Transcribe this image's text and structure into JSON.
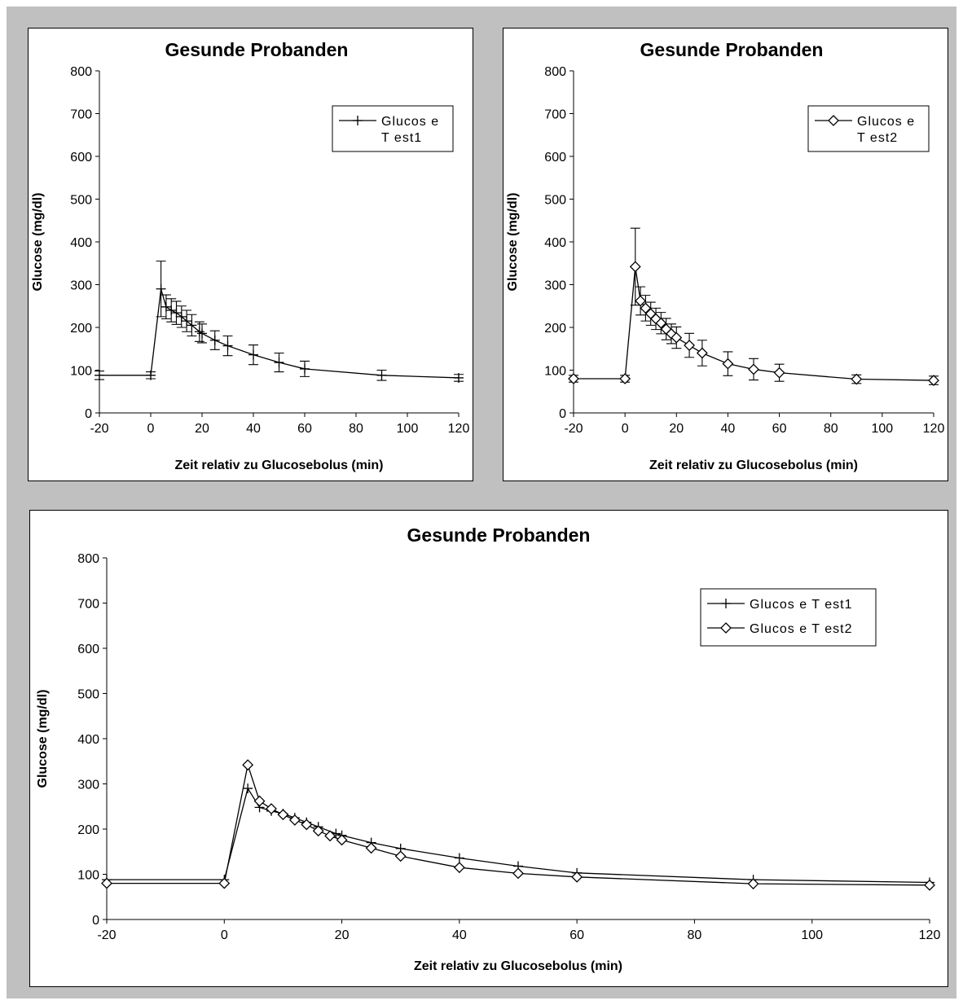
{
  "colors": {
    "background": "#c0c0c0",
    "panel": "#ffffff",
    "ink": "#000000"
  },
  "chart_data": [
    {
      "type": "line",
      "title": "Gesunde Probanden",
      "xlabel": "Zeit relativ zu Glucosebolus (min)",
      "ylabel": "Glucose (mg/dl)",
      "xlim": [
        -20,
        120
      ],
      "ylim": [
        0,
        800
      ],
      "xticks": [
        "-20",
        "0",
        "20",
        "40",
        "60",
        "80",
        "100",
        "120"
      ],
      "yticks": [
        "0",
        "100",
        "200",
        "300",
        "400",
        "500",
        "600",
        "700",
        "800"
      ],
      "legend_placement": "top-right",
      "grid": false,
      "series": [
        {
          "name": "Glucos e T est1",
          "legend_lines": [
            "Glucos e",
            "T est1"
          ],
          "marker": "plus",
          "x": [
            -20,
            0,
            4,
            6,
            8,
            10,
            12,
            14,
            16,
            19,
            20,
            25,
            30,
            40,
            50,
            60,
            90,
            120
          ],
          "y": [
            88,
            88,
            290,
            248,
            240,
            234,
            225,
            215,
            205,
            190,
            186,
            170,
            157,
            136,
            118,
            103,
            88,
            82
          ],
          "err": [
            10,
            8,
            65,
            28,
            27,
            27,
            25,
            25,
            25,
            23,
            22,
            22,
            23,
            23,
            22,
            18,
            12,
            8
          ]
        }
      ]
    },
    {
      "type": "line",
      "title": "Gesunde Probanden",
      "xlabel": "Zeit relativ zu Glucosebolus (min)",
      "ylabel": "Glucose (mg/dl)",
      "xlim": [
        -20,
        120
      ],
      "ylim": [
        0,
        800
      ],
      "xticks": [
        "-20",
        "0",
        "20",
        "40",
        "60",
        "80",
        "100",
        "120"
      ],
      "yticks": [
        "0",
        "100",
        "200",
        "300",
        "400",
        "500",
        "600",
        "700",
        "800"
      ],
      "legend_placement": "top-right",
      "grid": false,
      "series": [
        {
          "name": "Glucos e T est2",
          "legend_lines": [
            "Glucos e",
            "T est2"
          ],
          "marker": "diamond",
          "x": [
            -20,
            0,
            4,
            6,
            8,
            10,
            12,
            14,
            16,
            18,
            20,
            25,
            30,
            40,
            50,
            60,
            90,
            120
          ],
          "y": [
            80,
            80,
            342,
            262,
            245,
            232,
            220,
            210,
            196,
            185,
            176,
            158,
            140,
            115,
            102,
            94,
            79,
            76
          ],
          "err": [
            8,
            8,
            90,
            33,
            30,
            27,
            25,
            25,
            25,
            23,
            25,
            28,
            30,
            28,
            25,
            20,
            10,
            10
          ]
        }
      ]
    },
    {
      "type": "line",
      "title": "Gesunde Probanden",
      "xlabel": "Zeit relativ zu Glucosebolus (min)",
      "ylabel": "Glucose (mg/dl)",
      "xlim": [
        -20,
        120
      ],
      "ylim": [
        0,
        800
      ],
      "xticks": [
        "-20",
        "0",
        "20",
        "40",
        "60",
        "80",
        "100",
        "120"
      ],
      "yticks": [
        "0",
        "100",
        "200",
        "300",
        "400",
        "500",
        "600",
        "700",
        "800"
      ],
      "legend_placement": "top-right",
      "grid": false,
      "series": [
        {
          "name": "Glucos e T est1",
          "legend_lines": [
            "Glucos e T est1"
          ],
          "marker": "plus",
          "x": [
            -20,
            0,
            4,
            6,
            8,
            10,
            12,
            14,
            16,
            19,
            20,
            25,
            30,
            40,
            50,
            60,
            90,
            120
          ],
          "y": [
            88,
            88,
            290,
            248,
            240,
            234,
            225,
            215,
            205,
            190,
            186,
            170,
            157,
            136,
            118,
            103,
            88,
            82
          ]
        },
        {
          "name": "Glucos e T est2",
          "legend_lines": [
            "Glucos e T est2"
          ],
          "marker": "diamond",
          "x": [
            -20,
            0,
            4,
            6,
            8,
            10,
            12,
            14,
            16,
            18,
            20,
            25,
            30,
            40,
            50,
            60,
            90,
            120
          ],
          "y": [
            80,
            80,
            342,
            262,
            245,
            232,
            220,
            210,
            196,
            185,
            176,
            158,
            140,
            115,
            102,
            94,
            79,
            76
          ]
        }
      ]
    }
  ]
}
